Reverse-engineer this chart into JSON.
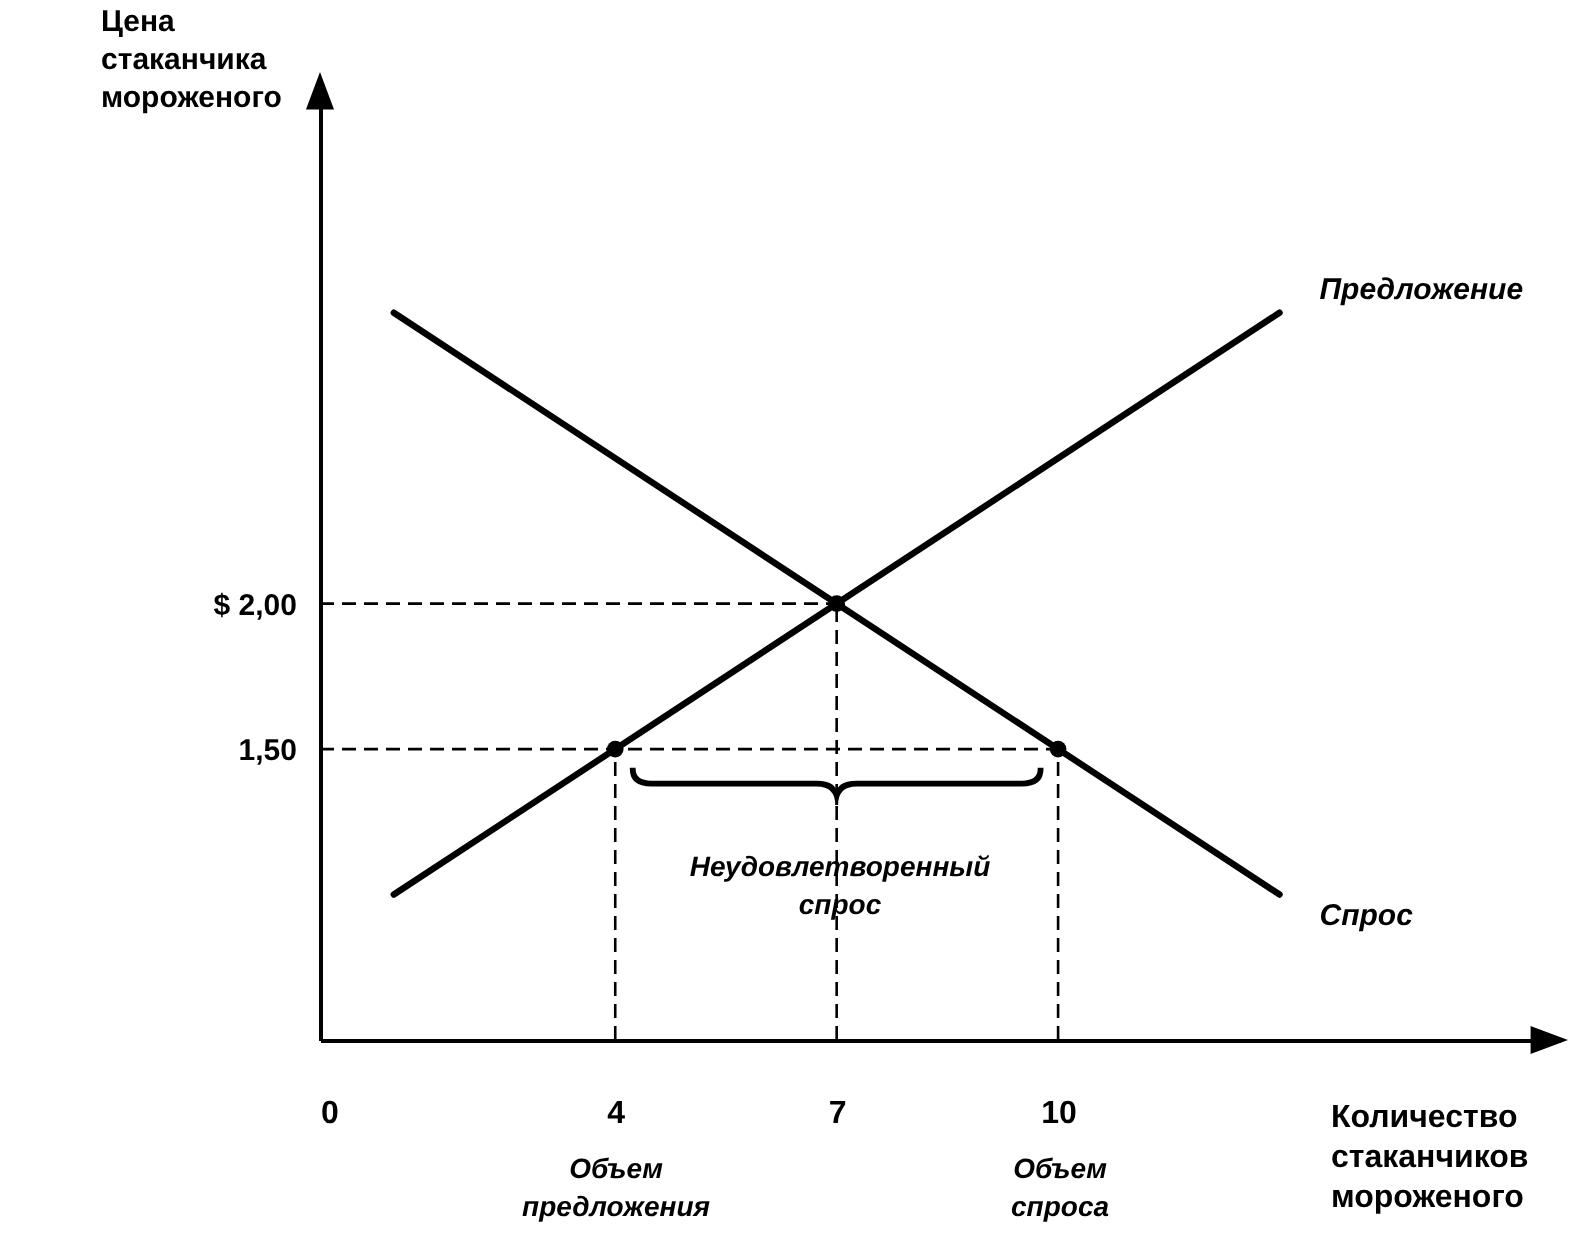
{
  "chart_data": {
    "type": "line",
    "xlabel": "Количество стаканчиков мороженого",
    "ylabel": "Цена стаканчика мороженого",
    "xlim": [
      0,
      16.8
    ],
    "ylim": [
      0.5,
      3.8
    ],
    "xticks": [
      0,
      4,
      7,
      10
    ],
    "yticks": [
      {
        "value": 2,
        "label": "$ 2,00"
      },
      {
        "value": 1.5,
        "label": "1,50"
      }
    ],
    "series": [
      {
        "name": "Предложение",
        "color": "#000000",
        "x": [
          1,
          13
        ],
        "values": [
          1,
          3
        ]
      },
      {
        "name": "Спрос",
        "color": "#000000",
        "x": [
          1,
          13
        ],
        "values": [
          3,
          1
        ]
      },
      {
        "type": "scatter",
        "color": "#000000",
        "x": [
          4,
          7,
          10
        ],
        "values": [
          1.5,
          2,
          1.5
        ],
        "marker": "circle"
      }
    ],
    "ref_lines": [
      {
        "axis": "y",
        "value": 2,
        "line_style": "dashed"
      },
      {
        "axis": "y",
        "value": 1.5,
        "line_style": "dashed"
      },
      {
        "axis": "x",
        "value": 4,
        "line_style": "dashed"
      },
      {
        "axis": "x",
        "value": 7,
        "line_style": "dashed"
      },
      {
        "axis": "x",
        "value": 10,
        "line_style": "dashed"
      }
    ],
    "annotations": [
      "Неудовлетворенный спрос",
      "Объем предложения",
      "Объем спроса"
    ],
    "grid": false
  }
}
